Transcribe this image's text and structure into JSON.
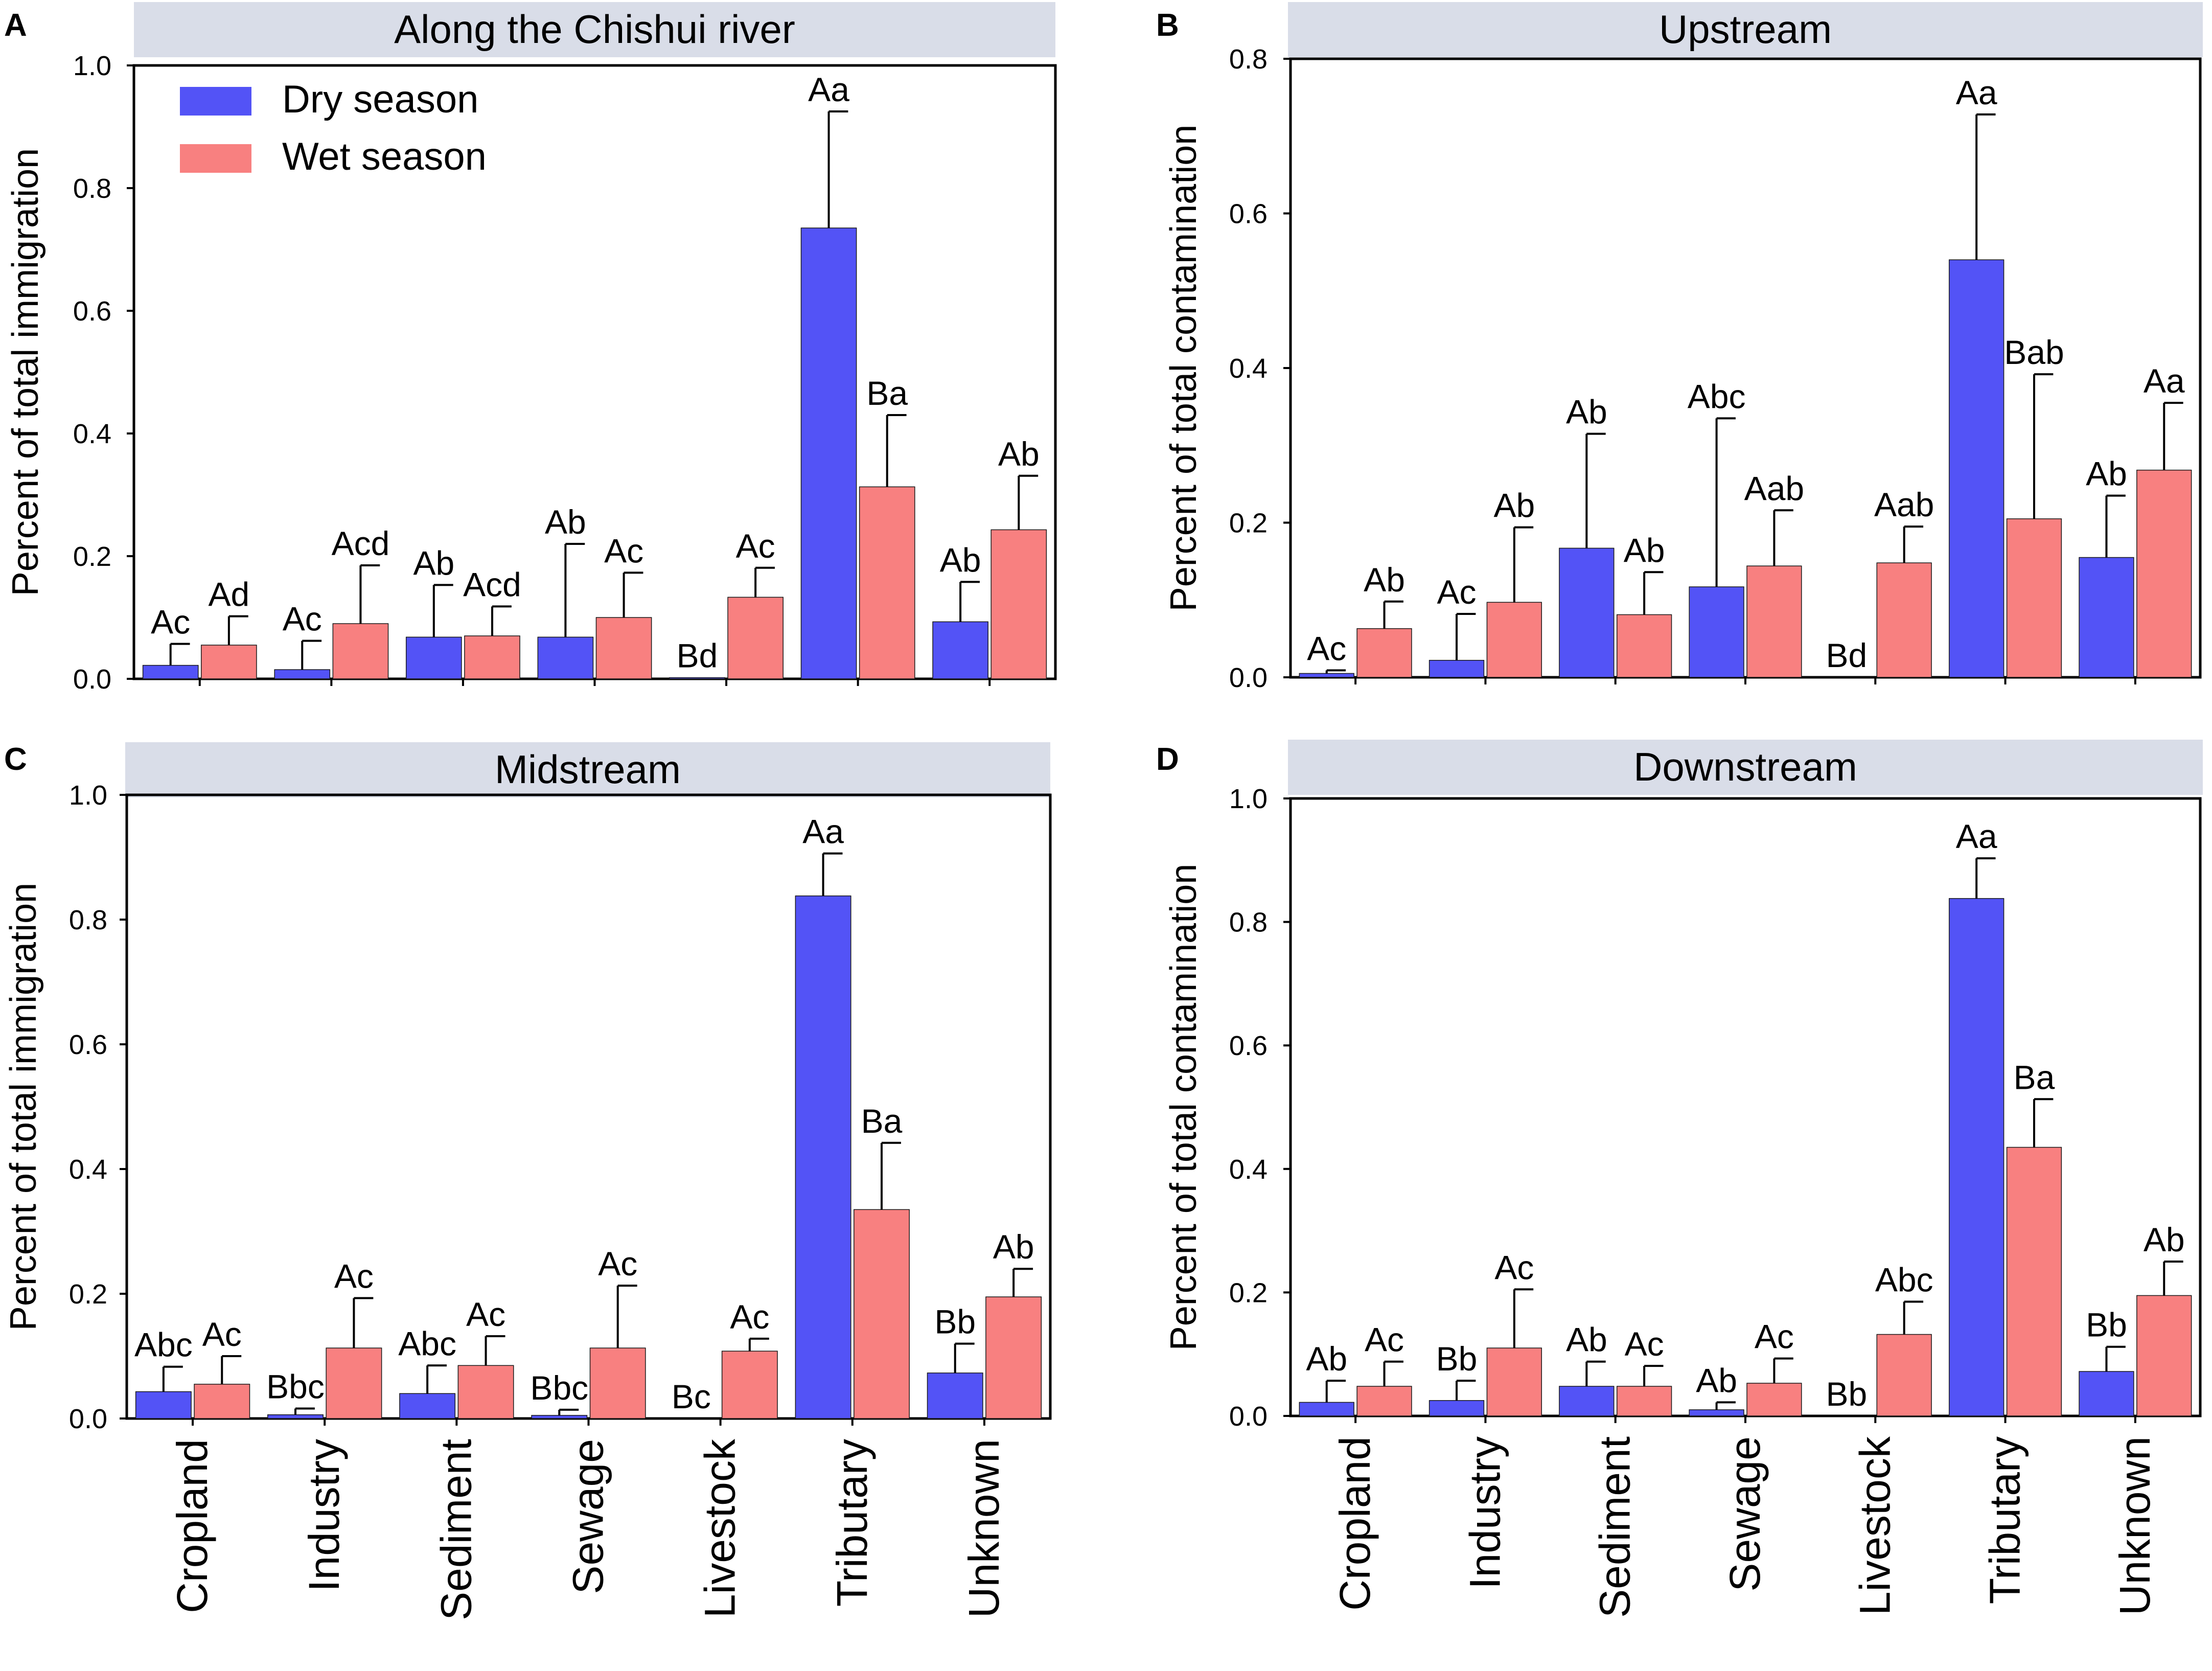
{
  "colors": {
    "dry": "#5353f6",
    "wet": "#f88080",
    "title_bg": "#d9dde8",
    "axis": "#000000"
  },
  "legend": {
    "dry": "Dry season",
    "wet": "Wet season"
  },
  "chart_data": [
    {
      "type": "bar",
      "letter": "A",
      "title": "Along the Chishui river",
      "ylabel": "Percent of total immigration",
      "xlabel": "",
      "ylim": [
        0,
        1.0
      ],
      "yticks": [
        "0.0",
        "0.2",
        "0.4",
        "0.6",
        "0.8",
        "1.0"
      ],
      "categories": [
        "Cropland",
        "Industry",
        "Sediment",
        "Sewage",
        "Livestock",
        "Tributary",
        "Unknown"
      ],
      "show_xlabels": false,
      "legend": true,
      "series": [
        {
          "name": "Dry season",
          "values": [
            0.022,
            0.015,
            0.068,
            0.068,
            0.002,
            0.735,
            0.093
          ],
          "errors": [
            0.035,
            0.047,
            0.085,
            0.152,
            0.0,
            0.19,
            0.065
          ],
          "labels": [
            "Ac",
            "Ac",
            "Ab",
            "Ab",
            "Bd",
            "Aa",
            "Ab"
          ]
        },
        {
          "name": "Wet season",
          "values": [
            0.055,
            0.09,
            0.07,
            0.1,
            0.133,
            0.313,
            0.243
          ],
          "errors": [
            0.047,
            0.095,
            0.048,
            0.073,
            0.048,
            0.117,
            0.088
          ],
          "labels": [
            "Ad",
            "Acd",
            "Acd",
            "Ac",
            "Ac",
            "Ba",
            "Ab"
          ]
        }
      ]
    },
    {
      "type": "bar",
      "letter": "B",
      "title": "Upstream",
      "ylabel": "Percent of total contamination",
      "xlabel": "",
      "ylim": [
        0,
        0.8
      ],
      "yticks": [
        "0.0",
        "0.2",
        "0.4",
        "0.6",
        "0.8"
      ],
      "categories": [
        "Cropland",
        "Industry",
        "Sediment",
        "Sewage",
        "Livestock",
        "Tributary",
        "Unknown"
      ],
      "show_xlabels": false,
      "legend": false,
      "series": [
        {
          "name": "Dry season",
          "values": [
            0.005,
            0.022,
            0.167,
            0.117,
            0.0,
            0.54,
            0.155
          ],
          "errors": [
            0.004,
            0.06,
            0.148,
            0.218,
            0.0,
            0.188,
            0.08
          ],
          "labels": [
            "Ac",
            "Ac",
            "Ab",
            "Abc",
            "Bd",
            "Aa",
            "Ab"
          ]
        },
        {
          "name": "Wet season",
          "values": [
            0.063,
            0.097,
            0.081,
            0.144,
            0.148,
            0.205,
            0.268
          ],
          "errors": [
            0.035,
            0.097,
            0.055,
            0.072,
            0.047,
            0.187,
            0.087
          ],
          "labels": [
            "Ab",
            "Ab",
            "Ab",
            "Aab",
            "Aab",
            "Bab",
            "Aa"
          ]
        }
      ]
    },
    {
      "type": "bar",
      "letter": "C",
      "title": "Midstream",
      "ylabel": "Percent of total immigration",
      "xlabel": "",
      "ylim": [
        0,
        1.0
      ],
      "yticks": [
        "0.0",
        "0.2",
        "0.4",
        "0.6",
        "0.8",
        "1.0"
      ],
      "categories": [
        "Cropland",
        "Industry",
        "Sediment",
        "Sewage",
        "Livestock",
        "Tributary",
        "Unknown"
      ],
      "show_xlabels": true,
      "legend": false,
      "series": [
        {
          "name": "Dry season",
          "values": [
            0.043,
            0.006,
            0.04,
            0.005,
            0.0,
            0.838,
            0.073
          ],
          "errors": [
            0.04,
            0.01,
            0.045,
            0.009,
            0.0,
            0.068,
            0.047
          ],
          "labels": [
            "Abc",
            "Bbc",
            "Abc",
            "Bbc",
            "Bc",
            "Aa",
            "Bb"
          ]
        },
        {
          "name": "Wet season",
          "values": [
            0.055,
            0.113,
            0.085,
            0.113,
            0.108,
            0.335,
            0.195
          ],
          "errors": [
            0.045,
            0.08,
            0.047,
            0.1,
            0.02,
            0.107,
            0.045
          ],
          "labels": [
            "Ac",
            "Ac",
            "Ac",
            "Ac",
            "Ac",
            "Ba",
            "Ab"
          ]
        }
      ]
    },
    {
      "type": "bar",
      "letter": "D",
      "title": "Downstream",
      "ylabel": "Percent of total contamination",
      "xlabel": "",
      "ylim": [
        0,
        1.0
      ],
      "yticks": [
        "0.0",
        "0.2",
        "0.4",
        "0.6",
        "0.8",
        "1.0"
      ],
      "categories": [
        "Cropland",
        "Industry",
        "Sediment",
        "Sewage",
        "Livestock",
        "Tributary",
        "Unknown"
      ],
      "show_xlabels": true,
      "legend": false,
      "series": [
        {
          "name": "Dry season",
          "values": [
            0.022,
            0.025,
            0.048,
            0.01,
            0.0,
            0.838,
            0.072
          ],
          "errors": [
            0.035,
            0.032,
            0.04,
            0.012,
            0.0,
            0.065,
            0.04
          ],
          "labels": [
            "Ab",
            "Bb",
            "Ab",
            "Ab",
            "Bb",
            "Aa",
            "Bb"
          ]
        },
        {
          "name": "Wet season",
          "values": [
            0.048,
            0.11,
            0.048,
            0.053,
            0.132,
            0.435,
            0.195
          ],
          "errors": [
            0.04,
            0.095,
            0.033,
            0.04,
            0.053,
            0.078,
            0.055
          ],
          "labels": [
            "Ac",
            "Ac",
            "Ac",
            "Ac",
            "Abc",
            "Ba",
            "Ab"
          ]
        }
      ]
    }
  ]
}
